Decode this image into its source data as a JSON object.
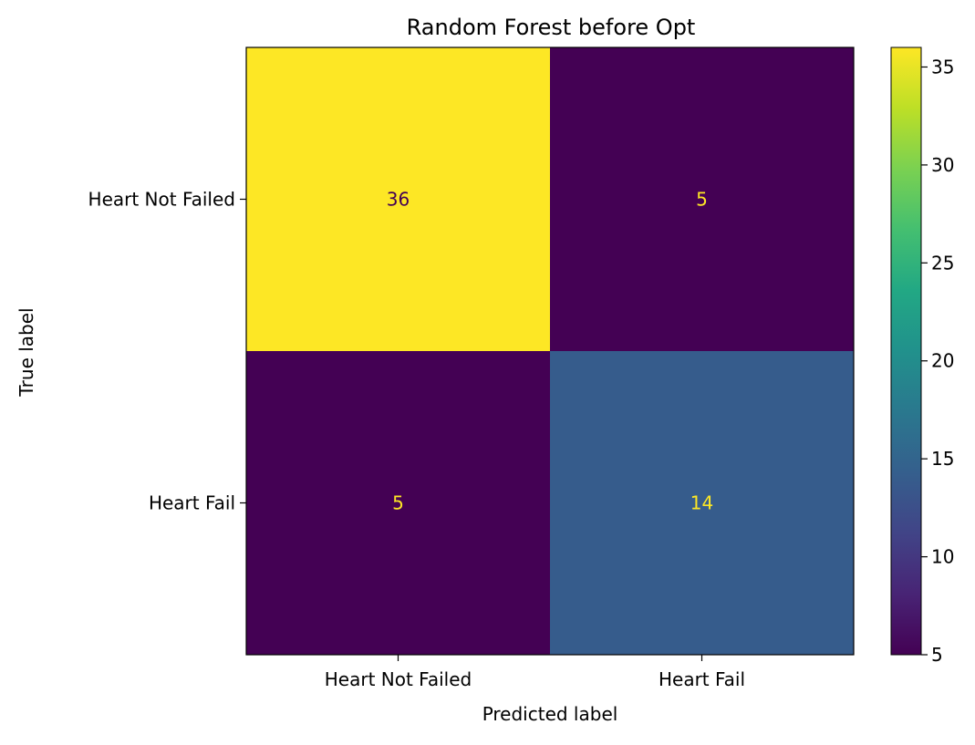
{
  "chart_data": {
    "type": "heatmap",
    "title": "Random Forest before Opt",
    "xlabel": "Predicted label",
    "ylabel": "True label",
    "x_categories": [
      "Heart Not Failed",
      "Heart Fail"
    ],
    "y_categories": [
      "Heart Not Failed",
      "Heart Fail"
    ],
    "values": [
      [
        36,
        5
      ],
      [
        5,
        14
      ]
    ],
    "colormap": "viridis",
    "colorbar": {
      "min": 5,
      "max": 36,
      "ticks": [
        5,
        10,
        15,
        20,
        25,
        30,
        35
      ]
    },
    "annotation_colors": {
      "on_dark": "#fde725",
      "on_light": "#440154"
    },
    "colors": {
      "low": "#440154",
      "high": "#fde725"
    }
  }
}
